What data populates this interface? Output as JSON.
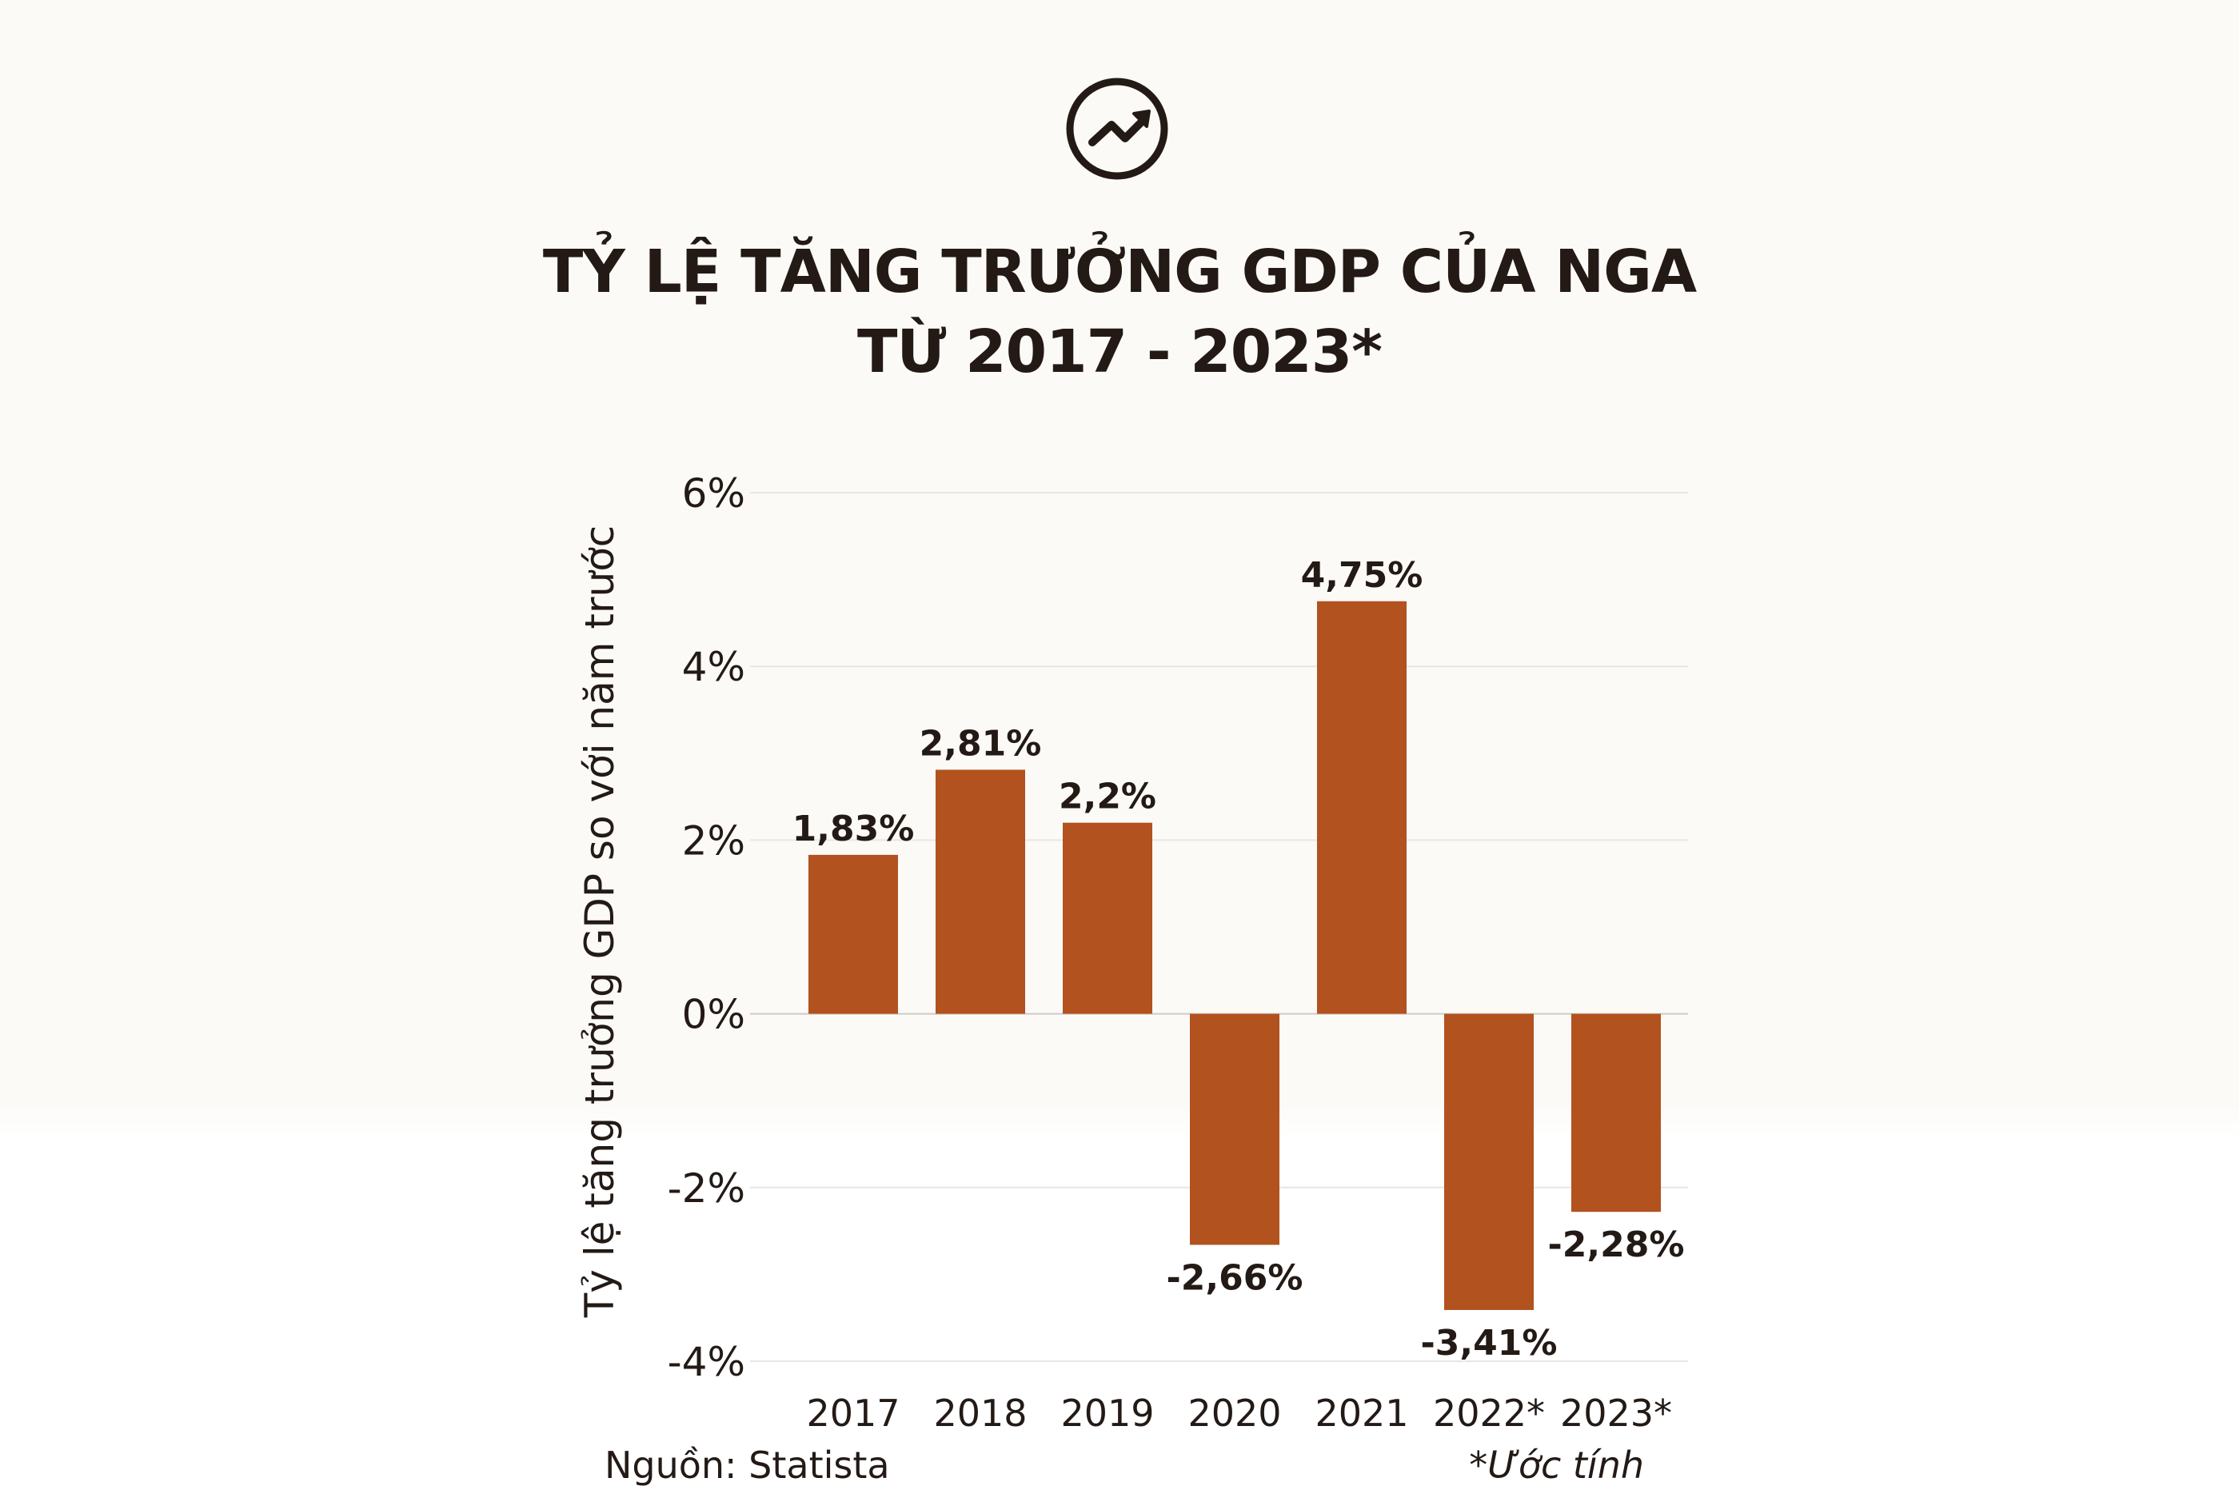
{
  "icon": "trending-up-circle-icon",
  "title_line1": "TỶ LỆ TĂNG TRƯỞNG GDP CỦA NGA",
  "title_line2": "TỪ 2017 - 2023*",
  "source": "Nguồn: Statista",
  "note": "*Ước tính",
  "chart_data": {
    "type": "bar",
    "title": "TỶ LỆ TĂNG TRƯỞNG GDP CỦA NGA TỪ 2017 - 2023*",
    "ylabel": "Tỷ lệ tăng trưởng GDP so với năm trước",
    "xlabel": "",
    "categories": [
      "2017",
      "2018",
      "2019",
      "2020",
      "2021",
      "2022*",
      "2023*"
    ],
    "values": [
      1.83,
      2.81,
      2.2,
      -2.66,
      4.75,
      -3.41,
      -2.28
    ],
    "data_labels": [
      "1,83%",
      "2,81%",
      "2,2%",
      "-2,66%",
      "4,75%",
      "-3,41%",
      "-2,28%"
    ],
    "ylim": [
      -4,
      6
    ],
    "yticks": [
      6,
      4,
      2,
      0,
      -2,
      -4
    ],
    "ytick_labels": [
      "6%",
      "4%",
      "2%",
      "0%",
      "-2%",
      "-4%"
    ],
    "grid": true,
    "bar_color": "#b1521f",
    "text_color": "#231a16"
  }
}
